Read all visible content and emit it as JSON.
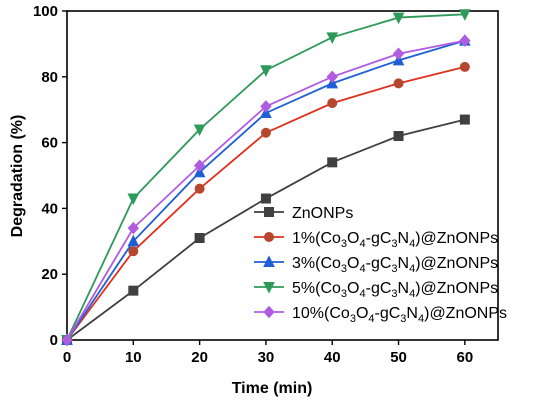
{
  "chart_data": {
    "type": "line",
    "title": "",
    "xlabel": "Time (min)",
    "ylabel": "Degradation (%)",
    "xlim": [
      0,
      65
    ],
    "ylim": [
      0,
      100
    ],
    "xticks": [
      0,
      10,
      20,
      30,
      40,
      50,
      60
    ],
    "yticks": [
      0,
      20,
      40,
      60,
      80,
      100
    ],
    "grid": false,
    "legend_position": "bottom-right",
    "x": [
      0,
      10,
      20,
      30,
      40,
      50,
      60
    ],
    "series": [
      {
        "name": "ZnONPs",
        "legend": {
          "prefix": "ZnONPs",
          "parts": []
        },
        "color": "#404040",
        "marker": "square",
        "values": [
          0,
          15,
          31,
          43,
          54,
          62,
          67
        ]
      },
      {
        "name": "1%(Co3O4-gC3N4)@ZnONPs",
        "legend": {
          "prefix": "1%(Co",
          "parts": [
            [
              "3",
              "sub"
            ],
            [
              "O",
              ""
            ],
            [
              "4",
              "sub"
            ],
            [
              "-gC",
              ""
            ],
            [
              "3",
              "sub"
            ],
            [
              "N",
              ""
            ],
            [
              "4",
              "sub"
            ],
            [
              ")@ZnONPs",
              ""
            ]
          ]
        },
        "color": "#e0301e",
        "marker": "circle",
        "marker_color": "#b5472e",
        "values": [
          0,
          27,
          46,
          63,
          72,
          78,
          83
        ]
      },
      {
        "name": "3%(Co3O4-gC3N4)@ZnONPs",
        "legend": {
          "prefix": "3%(Co",
          "parts": [
            [
              "3",
              "sub"
            ],
            [
              "O",
              ""
            ],
            [
              "4",
              "sub"
            ],
            [
              "-gC",
              ""
            ],
            [
              "3",
              "sub"
            ],
            [
              "N",
              ""
            ],
            [
              "4",
              "sub"
            ],
            [
              ")@ZnONPs",
              ""
            ]
          ]
        },
        "color": "#1f5fd6",
        "marker": "triangle-up",
        "values": [
          0,
          30,
          51,
          69,
          78,
          85,
          91
        ]
      },
      {
        "name": "5%(Co3O4-gC3N4)@ZnONPs",
        "legend": {
          "prefix": "5%(Co",
          "parts": [
            [
              "3",
              "sub"
            ],
            [
              "O",
              ""
            ],
            [
              "4",
              "sub"
            ],
            [
              "-gC",
              ""
            ],
            [
              "3",
              "sub"
            ],
            [
              "N",
              ""
            ],
            [
              "4",
              "sub"
            ],
            [
              ")@ZnONPs",
              ""
            ]
          ]
        },
        "color": "#2e9a5a",
        "marker": "triangle-down",
        "values": [
          0,
          43,
          64,
          82,
          92,
          98,
          99
        ]
      },
      {
        "name": "10%(Co3O4-gC3N4)@ZnONPs",
        "legend": {
          "prefix": "10%(Co",
          "parts": [
            [
              "3",
              "sub"
            ],
            [
              "O",
              ""
            ],
            [
              "4",
              "sub"
            ],
            [
              "-gC",
              ""
            ],
            [
              "3",
              "sub"
            ],
            [
              "N",
              ""
            ],
            [
              "4",
              "sub"
            ],
            [
              ")@ZnONPs",
              ""
            ]
          ]
        },
        "color": "#b05ce0",
        "marker": "diamond",
        "values": [
          0,
          34,
          53,
          71,
          80,
          87,
          91
        ]
      }
    ]
  }
}
